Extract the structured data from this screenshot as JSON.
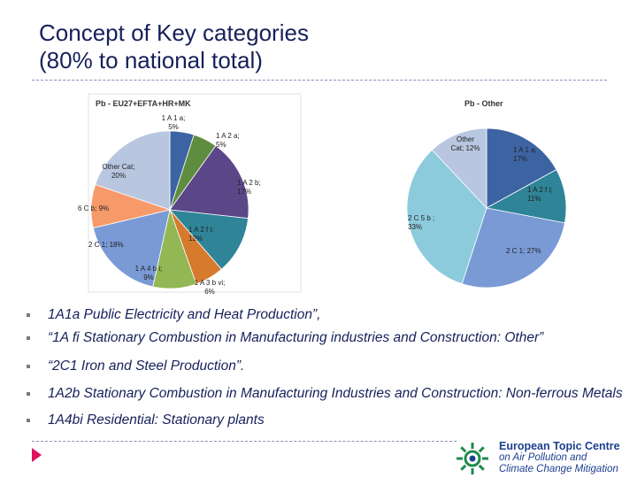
{
  "page": {
    "title_line1": "Concept of Key categories",
    "title_line2": "(80% to national total)"
  },
  "bullets": [
    "1A1a Public Electricity and Heat Production”,",
    "“1A fi Stationary Combustion in Manufacturing  industries and Construction: Other”",
    "“2C1 Iron and Steel Production”.",
    " 1A2b Stationary Combustion in Manufacturing Industries and Construction: Non-ferrous Metals",
    "1A4bi Residential: Stationary plants"
  ],
  "logo": {
    "line1": "European Topic Centre",
    "line2": "on Air Pollution and",
    "line3": "Climate Change Mitigation"
  },
  "chart_data": [
    {
      "type": "pie",
      "title": "Pb - EU27+EFTA+HR+MK",
      "slices": [
        {
          "label_line1": "1 A 1 a;",
          "label_line2": "5%",
          "value": 5,
          "color": "#3d64a2"
        },
        {
          "label_line1": "1 A 2 a;",
          "label_line2": "5%",
          "value": 5,
          "color": "#5f8d40"
        },
        {
          "label_line1": "1 A 2 b;",
          "label_line2": "17%",
          "value": 17,
          "color": "#5b4788"
        },
        {
          "label_line1": "1 A 2 f i;",
          "label_line2": "12%",
          "value": 12,
          "color": "#2f8497"
        },
        {
          "label_line1": "1 A 3 b vi;",
          "label_line2": "6%",
          "value": 6,
          "color": "#d67a2e"
        },
        {
          "label_line1": "1 A 4 b i;",
          "label_line2": "9%",
          "value": 9,
          "color": "#93b754"
        },
        {
          "label_line1": "2 C 1; 18%",
          "label_line2": "",
          "value": 18,
          "color": "#7a9ad6"
        },
        {
          "label_line1": "6 C b; 9%",
          "label_line2": "",
          "value": 9,
          "color": "#f79a6a"
        },
        {
          "label_line1": "Other Cat;",
          "label_line2": "20%",
          "value": 20,
          "color": "#b8c6e0"
        }
      ]
    },
    {
      "type": "pie",
      "title": "Pb - Other",
      "slices": [
        {
          "label_line1": "1 A 1 a;",
          "label_line2": "17%",
          "value": 17,
          "color": "#3d64a2"
        },
        {
          "label_line1": "1 A 2 f i;",
          "label_line2": "11%",
          "value": 11,
          "color": "#2f8497"
        },
        {
          "label_line1": "2 C 1; 27%",
          "label_line2": "",
          "value": 27,
          "color": "#7a9ad6"
        },
        {
          "label_line1": "2 C 5 b ;",
          "label_line2": "33%",
          "value": 33,
          "color": "#8ccbdc"
        },
        {
          "label_line1": "Other",
          "label_line2": "Cat; 12%",
          "value": 12,
          "color": "#b8c6e0"
        }
      ]
    }
  ]
}
